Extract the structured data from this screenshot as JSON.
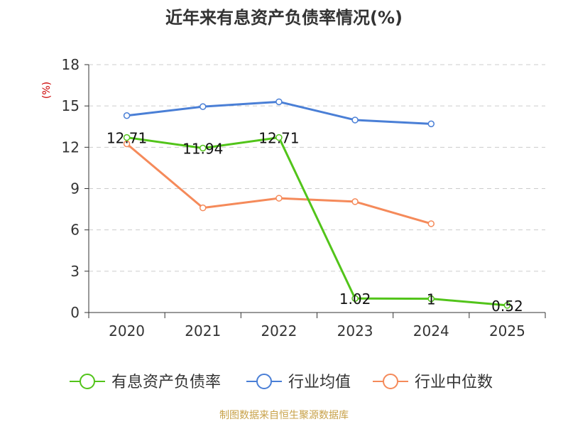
{
  "chart_data": {
    "type": "line",
    "title": "近年来有息资产负债率情况(%)",
    "ylabel": "(%)",
    "categories": [
      "2020",
      "2021",
      "2022",
      "2023",
      "2024",
      "2025"
    ],
    "ylim": [
      0,
      18
    ],
    "yticks": [
      "0",
      "3",
      "6",
      "9",
      "12",
      "15",
      "18"
    ],
    "grid": "horizontal-dashed",
    "legend_position": "bottom",
    "series": [
      {
        "name": "有息资产负债率",
        "color": "#52c41a",
        "values": [
          12.71,
          11.94,
          12.71,
          1.02,
          1,
          0.52
        ],
        "labels": [
          "12.71",
          "11.94",
          "12.71",
          "1.02",
          "1",
          "0.52"
        ]
      },
      {
        "name": "行业均值",
        "color": "#4a7fd6",
        "values": [
          14.3,
          14.95,
          15.3,
          13.98,
          13.7,
          null
        ]
      },
      {
        "name": "行业中位数",
        "color": "#f58a5a",
        "values": [
          12.25,
          7.6,
          8.3,
          8.05,
          6.45,
          null
        ]
      }
    ]
  },
  "footer": {
    "source": "制图数据来自恒生聚源数据库"
  }
}
